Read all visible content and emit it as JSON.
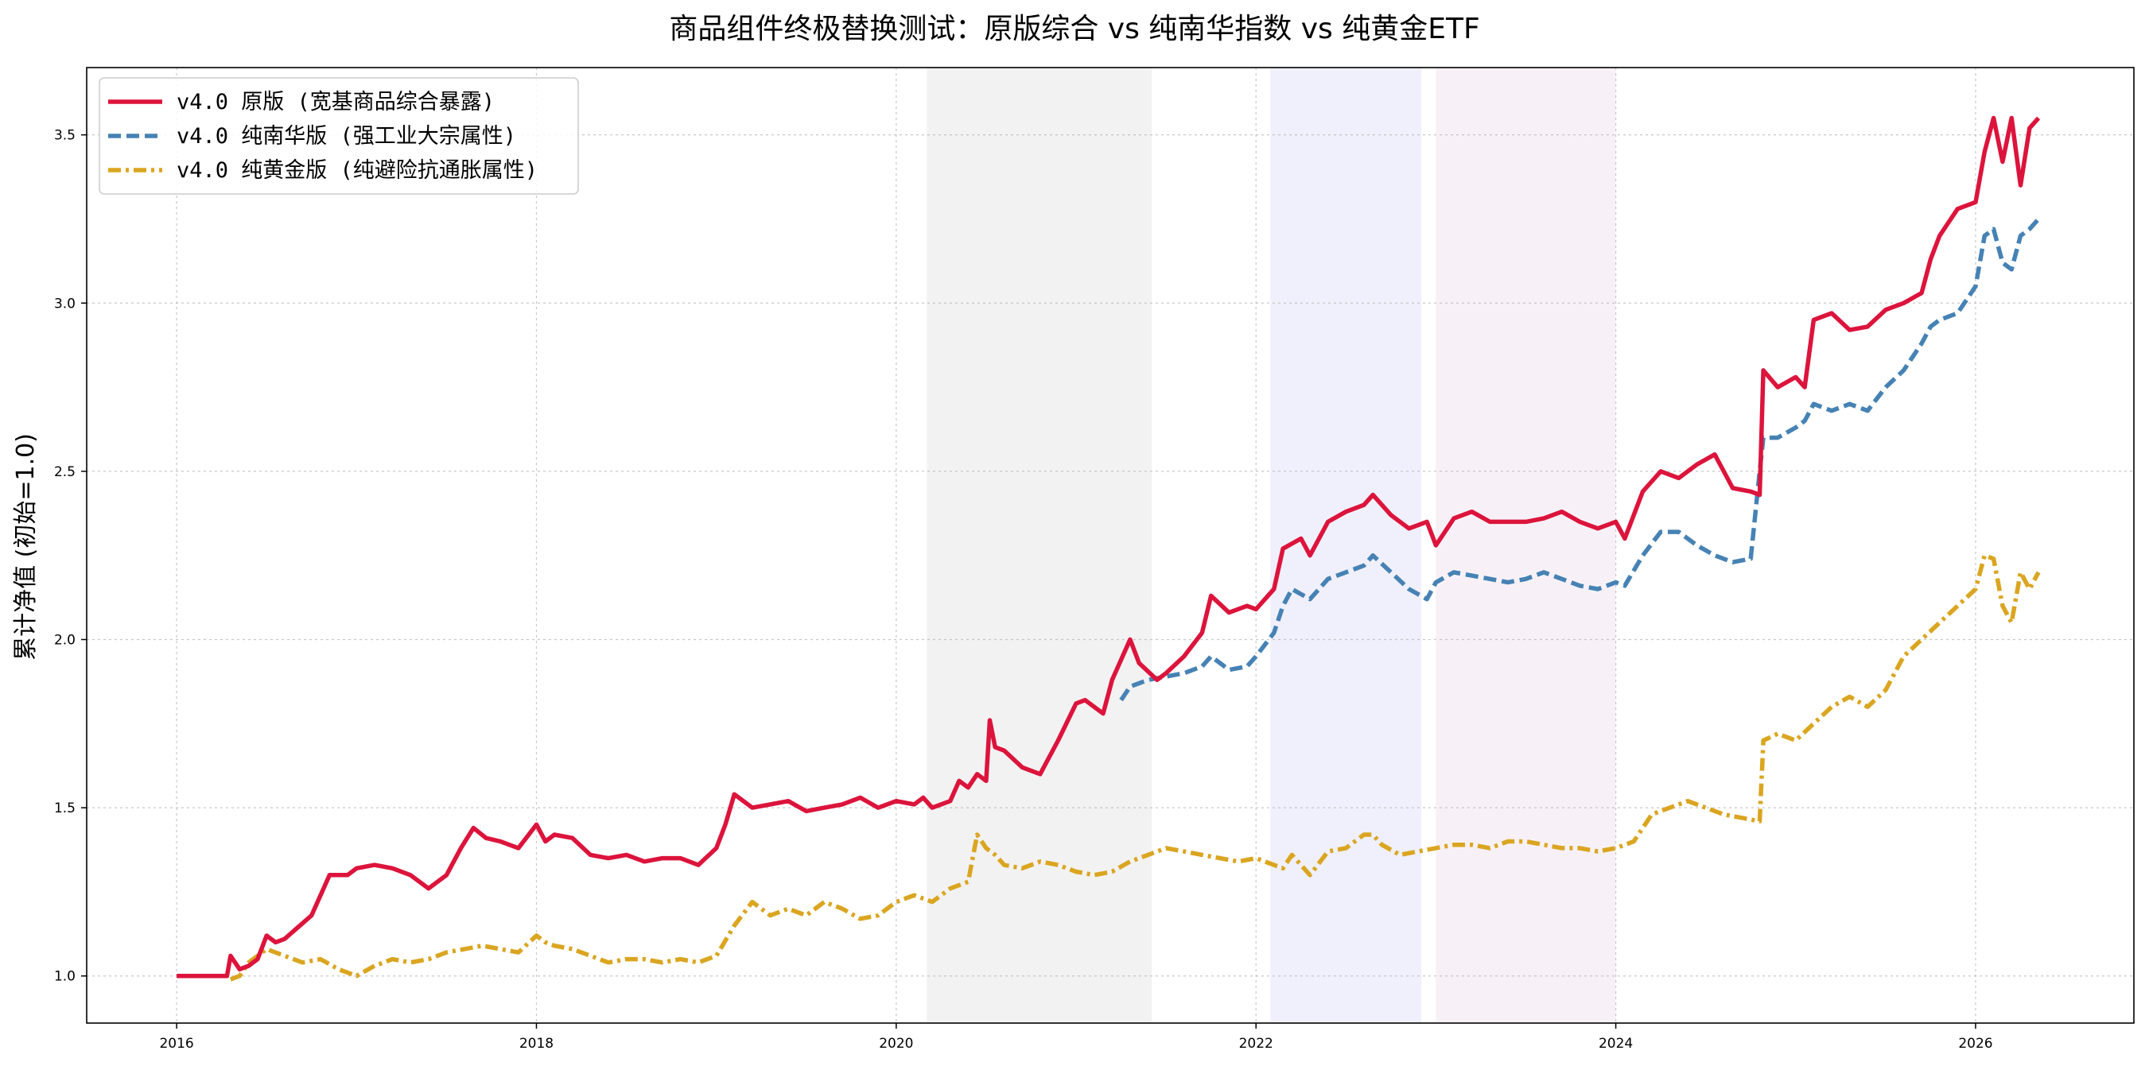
{
  "chart_data": {
    "type": "line",
    "title": "商品组件终极替换测试：原版综合 vs 纯南华指数 vs 纯黄金ETF",
    "xlabel": "",
    "ylabel": "累计净值 (初始=1.0)",
    "xlim": [
      2015.5,
      2026.88
    ],
    "ylim": [
      0.86,
      3.7
    ],
    "x_ticks": [
      {
        "value": 2016,
        "label": "2016"
      },
      {
        "value": 2018,
        "label": "2018"
      },
      {
        "value": 2020,
        "label": "2020"
      },
      {
        "value": 2022,
        "label": "2022"
      },
      {
        "value": 2024,
        "label": "2024"
      },
      {
        "value": 2026,
        "label": "2026"
      }
    ],
    "y_ticks": [
      {
        "value": 1.0,
        "label": "1.0"
      },
      {
        "value": 1.5,
        "label": "1.5"
      },
      {
        "value": 2.0,
        "label": "2.0"
      },
      {
        "value": 2.5,
        "label": "2.5"
      },
      {
        "value": 3.0,
        "label": "3.0"
      },
      {
        "value": 3.5,
        "label": "3.5"
      }
    ],
    "grid": true,
    "legend_position": "top-left",
    "shaded_regions": [
      {
        "x0": 2020.17,
        "x1": 2021.42,
        "color": "#e6e6e6",
        "opacity": 0.5
      },
      {
        "x0": 2022.08,
        "x1": 2022.92,
        "color": "#e3e3fa",
        "opacity": 0.55
      },
      {
        "x0": 2023.0,
        "x1": 2024.0,
        "color": "#f0e3ef",
        "opacity": 0.5
      }
    ],
    "series": [
      {
        "name": "v4.0 原版 (宽基商品综合暴露)",
        "color": "#dc143c",
        "dash": "solid",
        "x": [
          2016.0,
          2016.28,
          2016.3,
          2016.35,
          2016.4,
          2016.45,
          2016.5,
          2016.55,
          2016.6,
          2016.75,
          2016.85,
          2016.95,
          2017.0,
          2017.1,
          2017.2,
          2017.3,
          2017.4,
          2017.5,
          2017.58,
          2017.65,
          2017.72,
          2017.8,
          2017.9,
          2018.0,
          2018.05,
          2018.1,
          2018.2,
          2018.3,
          2018.4,
          2018.5,
          2018.6,
          2018.7,
          2018.8,
          2018.9,
          2019.0,
          2019.05,
          2019.1,
          2019.2,
          2019.3,
          2019.4,
          2019.5,
          2019.6,
          2019.7,
          2019.8,
          2019.9,
          2020.0,
          2020.1,
          2020.15,
          2020.2,
          2020.3,
          2020.35,
          2020.4,
          2020.45,
          2020.5,
          2020.52,
          2020.55,
          2020.6,
          2020.7,
          2020.8,
          2020.9,
          2021.0,
          2021.05,
          2021.15,
          2021.2,
          2021.3,
          2021.35,
          2021.45,
          2021.5,
          2021.6,
          2021.7,
          2021.75,
          2021.85,
          2021.95,
          2022.0,
          2022.1,
          2022.15,
          2022.25,
          2022.3,
          2022.4,
          2022.5,
          2022.6,
          2022.65,
          2022.75,
          2022.85,
          2022.95,
          2023.0,
          2023.1,
          2023.2,
          2023.3,
          2023.4,
          2023.5,
          2023.6,
          2023.7,
          2023.8,
          2023.9,
          2024.0,
          2024.05,
          2024.15,
          2024.25,
          2024.35,
          2024.45,
          2024.55,
          2024.65,
          2024.75,
          2024.8,
          2024.82,
          2024.9,
          2025.0,
          2025.05,
          2025.1,
          2025.2,
          2025.3,
          2025.4,
          2025.5,
          2025.6,
          2025.7,
          2025.75,
          2025.8,
          2025.9,
          2026.0,
          2026.05,
          2026.1,
          2026.15,
          2026.2,
          2026.25,
          2026.3,
          2026.35
        ],
        "values": [
          1.0,
          1.0,
          1.06,
          1.02,
          1.03,
          1.05,
          1.12,
          1.1,
          1.11,
          1.18,
          1.3,
          1.3,
          1.32,
          1.33,
          1.32,
          1.3,
          1.26,
          1.3,
          1.38,
          1.44,
          1.41,
          1.4,
          1.38,
          1.45,
          1.4,
          1.42,
          1.41,
          1.36,
          1.35,
          1.36,
          1.34,
          1.35,
          1.35,
          1.33,
          1.38,
          1.45,
          1.54,
          1.5,
          1.51,
          1.52,
          1.49,
          1.5,
          1.51,
          1.53,
          1.5,
          1.52,
          1.51,
          1.53,
          1.5,
          1.52,
          1.58,
          1.56,
          1.6,
          1.58,
          1.76,
          1.68,
          1.67,
          1.62,
          1.6,
          1.7,
          1.81,
          1.82,
          1.78,
          1.88,
          2.0,
          1.93,
          1.88,
          1.9,
          1.95,
          2.02,
          2.13,
          2.08,
          2.1,
          2.09,
          2.15,
          2.27,
          2.3,
          2.25,
          2.35,
          2.38,
          2.4,
          2.43,
          2.37,
          2.33,
          2.35,
          2.28,
          2.36,
          2.38,
          2.35,
          2.35,
          2.35,
          2.36,
          2.38,
          2.35,
          2.33,
          2.35,
          2.3,
          2.44,
          2.5,
          2.48,
          2.52,
          2.55,
          2.45,
          2.44,
          2.43,
          2.8,
          2.75,
          2.78,
          2.75,
          2.95,
          2.97,
          2.92,
          2.93,
          2.98,
          3.0,
          3.03,
          3.13,
          3.2,
          3.28,
          3.3,
          3.45,
          3.55,
          3.42,
          3.55,
          3.35,
          3.52,
          3.55
        ]
      },
      {
        "name": "v4.0 纯南华版 (强工业大宗属性)",
        "color": "#4682b4",
        "dash": "dashed",
        "x": [
          2021.25,
          2021.3,
          2021.4,
          2021.5,
          2021.6,
          2021.7,
          2021.75,
          2021.85,
          2021.95,
          2022.0,
          2022.1,
          2022.15,
          2022.2,
          2022.3,
          2022.4,
          2022.5,
          2022.6,
          2022.65,
          2022.75,
          2022.85,
          2022.95,
          2023.0,
          2023.1,
          2023.2,
          2023.3,
          2023.4,
          2023.5,
          2023.6,
          2023.7,
          2023.8,
          2023.9,
          2024.0,
          2024.05,
          2024.15,
          2024.25,
          2024.35,
          2024.45,
          2024.55,
          2024.65,
          2024.75,
          2024.8,
          2024.82,
          2024.9,
          2025.0,
          2025.05,
          2025.1,
          2025.2,
          2025.3,
          2025.4,
          2025.5,
          2025.6,
          2025.7,
          2025.75,
          2025.8,
          2025.9,
          2026.0,
          2026.05,
          2026.1,
          2026.15,
          2026.2,
          2026.25,
          2026.3,
          2026.35
        ],
        "values": [
          1.82,
          1.86,
          1.88,
          1.89,
          1.9,
          1.92,
          1.95,
          1.91,
          1.92,
          1.95,
          2.02,
          2.1,
          2.15,
          2.12,
          2.18,
          2.2,
          2.22,
          2.25,
          2.2,
          2.15,
          2.12,
          2.17,
          2.2,
          2.19,
          2.18,
          2.17,
          2.18,
          2.2,
          2.18,
          2.16,
          2.15,
          2.17,
          2.16,
          2.25,
          2.32,
          2.32,
          2.28,
          2.25,
          2.23,
          2.24,
          2.5,
          2.6,
          2.6,
          2.63,
          2.65,
          2.7,
          2.68,
          2.7,
          2.68,
          2.75,
          2.8,
          2.88,
          2.93,
          2.95,
          2.97,
          3.05,
          3.2,
          3.22,
          3.12,
          3.1,
          3.2,
          3.22,
          3.25
        ]
      },
      {
        "name": "v4.0 纯黄金版 (纯避险抗通胀属性)",
        "color": "#daa520",
        "dash": "dashdot",
        "x": [
          2016.3,
          2016.35,
          2016.4,
          2016.5,
          2016.6,
          2016.7,
          2016.8,
          2016.9,
          2017.0,
          2017.1,
          2017.2,
          2017.3,
          2017.4,
          2017.5,
          2017.6,
          2017.7,
          2017.8,
          2017.9,
          2018.0,
          2018.05,
          2018.1,
          2018.2,
          2018.3,
          2018.4,
          2018.5,
          2018.6,
          2018.7,
          2018.8,
          2018.9,
          2019.0,
          2019.1,
          2019.2,
          2019.3,
          2019.4,
          2019.5,
          2019.6,
          2019.7,
          2019.8,
          2019.9,
          2020.0,
          2020.1,
          2020.2,
          2020.3,
          2020.4,
          2020.45,
          2020.5,
          2020.55,
          2020.6,
          2020.7,
          2020.8,
          2020.9,
          2021.0,
          2021.1,
          2021.2,
          2021.3,
          2021.4,
          2021.5,
          2021.6,
          2021.7,
          2021.8,
          2021.9,
          2022.0,
          2022.1,
          2022.15,
          2022.2,
          2022.3,
          2022.4,
          2022.5,
          2022.6,
          2022.65,
          2022.7,
          2022.8,
          2022.9,
          2023.0,
          2023.1,
          2023.2,
          2023.3,
          2023.4,
          2023.5,
          2023.6,
          2023.7,
          2023.8,
          2023.9,
          2024.0,
          2024.1,
          2024.2,
          2024.3,
          2024.4,
          2024.5,
          2024.6,
          2024.7,
          2024.8,
          2024.82,
          2024.9,
          2025.0,
          2025.1,
          2025.2,
          2025.3,
          2025.4,
          2025.5,
          2025.6,
          2025.7,
          2025.8,
          2025.9,
          2026.0,
          2026.05,
          2026.1,
          2026.15,
          2026.2,
          2026.25,
          2026.3,
          2026.35
        ],
        "values": [
          0.99,
          1.0,
          1.04,
          1.08,
          1.06,
          1.04,
          1.05,
          1.02,
          1.0,
          1.03,
          1.05,
          1.04,
          1.05,
          1.07,
          1.08,
          1.09,
          1.08,
          1.07,
          1.12,
          1.1,
          1.09,
          1.08,
          1.06,
          1.04,
          1.05,
          1.05,
          1.04,
          1.05,
          1.04,
          1.06,
          1.15,
          1.22,
          1.18,
          1.2,
          1.18,
          1.22,
          1.2,
          1.17,
          1.18,
          1.22,
          1.24,
          1.22,
          1.26,
          1.28,
          1.42,
          1.38,
          1.36,
          1.33,
          1.32,
          1.34,
          1.33,
          1.31,
          1.3,
          1.31,
          1.34,
          1.36,
          1.38,
          1.37,
          1.36,
          1.35,
          1.34,
          1.35,
          1.33,
          1.32,
          1.36,
          1.3,
          1.37,
          1.38,
          1.42,
          1.42,
          1.39,
          1.36,
          1.37,
          1.38,
          1.39,
          1.39,
          1.38,
          1.4,
          1.4,
          1.39,
          1.38,
          1.38,
          1.37,
          1.38,
          1.4,
          1.48,
          1.5,
          1.52,
          1.5,
          1.48,
          1.47,
          1.46,
          1.7,
          1.72,
          1.7,
          1.75,
          1.8,
          1.83,
          1.8,
          1.85,
          1.95,
          2.0,
          2.05,
          2.1,
          2.15,
          2.25,
          2.24,
          2.1,
          2.05,
          2.2,
          2.15,
          2.2
        ]
      }
    ]
  }
}
